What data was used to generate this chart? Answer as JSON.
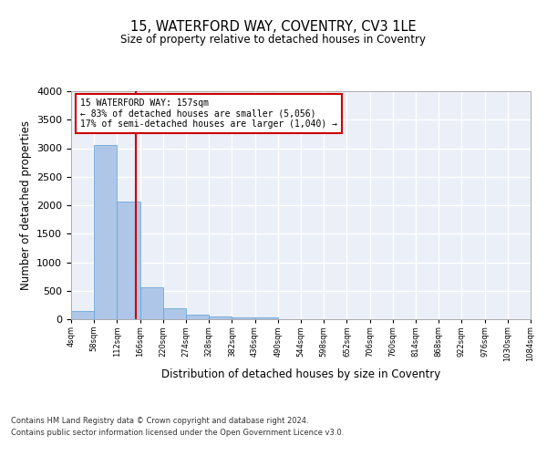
{
  "title": "15, WATERFORD WAY, COVENTRY, CV3 1LE",
  "subtitle": "Size of property relative to detached houses in Coventry",
  "xlabel": "Distribution of detached houses by size in Coventry",
  "ylabel": "Number of detached properties",
  "bin_edges": [
    4,
    58,
    112,
    166,
    220,
    274,
    328,
    382,
    436,
    490,
    544,
    598,
    652,
    706,
    760,
    814,
    868,
    922,
    976,
    1030,
    1084
  ],
  "bar_heights": [
    140,
    3060,
    2060,
    560,
    200,
    75,
    55,
    40,
    40,
    0,
    0,
    0,
    0,
    0,
    0,
    0,
    0,
    0,
    0,
    0
  ],
  "bar_color": "#aec6e8",
  "bar_edge_color": "#5a9fd4",
  "property_size": 157,
  "vline_color": "#cc0000",
  "annotation_text": "15 WATERFORD WAY: 157sqm\n← 83% of detached houses are smaller (5,056)\n17% of semi-detached houses are larger (1,040) →",
  "annotation_box_color": "#ffffff",
  "annotation_box_edge": "#cc0000",
  "ylim": [
    0,
    4000
  ],
  "yticks": [
    0,
    500,
    1000,
    1500,
    2000,
    2500,
    3000,
    3500,
    4000
  ],
  "background_color": "#eaeff8",
  "grid_color": "#ffffff",
  "footer_line1": "Contains HM Land Registry data © Crown copyright and database right 2024.",
  "footer_line2": "Contains public sector information licensed under the Open Government Licence v3.0."
}
